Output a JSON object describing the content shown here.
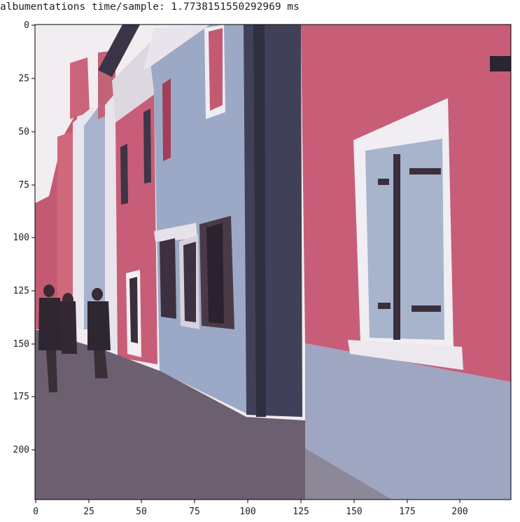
{
  "output": {
    "text": "albumentations time/sample: 1.7738151550292969 ms"
  },
  "image": {
    "description_icon": "street-scene-photo",
    "x_ticks": [
      "0",
      "25",
      "50",
      "75",
      "100",
      "125",
      "150",
      "175",
      "200"
    ],
    "y_ticks": [
      "0",
      "25",
      "50",
      "75",
      "100",
      "125",
      "150",
      "175",
      "200"
    ],
    "colors": {
      "sky": "#f2eef0",
      "pink_wall": "#c85d78",
      "blue_wall": "#9aa7c4",
      "dark_column": "#3e3e52",
      "street": "#6b5f6e",
      "window_frame": "#f0eef2",
      "shutter_dark": "#4a3a48"
    }
  }
}
